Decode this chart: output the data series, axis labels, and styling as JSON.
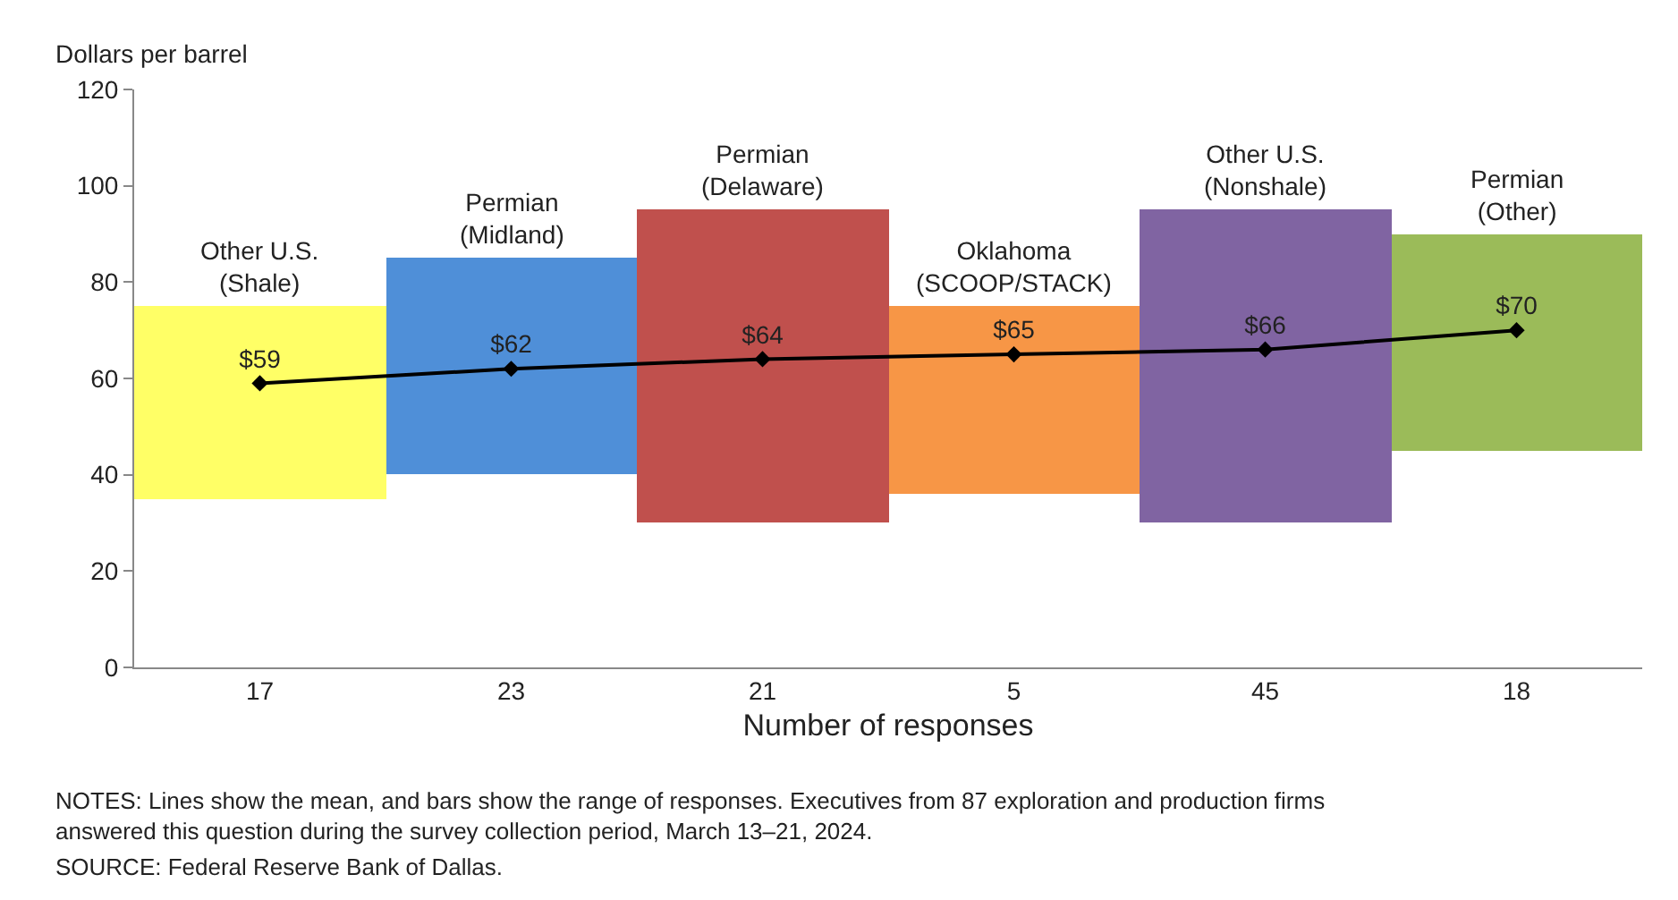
{
  "chart_data": {
    "type": "bar",
    "ylabel": "Dollars per barrel",
    "xlabel": "Number of responses",
    "categories": [
      "17",
      "23",
      "21",
      "5",
      "45",
      "18"
    ],
    "series": [
      {
        "colors": [
          "#ffff66",
          "#4f8fd8",
          "#c0504d",
          "#f79646",
          "#8064a2",
          "#9bbb59"
        ],
        "base": [
          35,
          40,
          30,
          36,
          30,
          45
        ],
        "values": [
          40,
          45,
          65,
          39,
          65,
          45
        ]
      },
      {
        "type": "line",
        "color": "#000000",
        "values": [
          59,
          62,
          64,
          65,
          66,
          70
        ],
        "value_labels": [
          "$59",
          "$62",
          "$64",
          "$65",
          "$66",
          "$70"
        ]
      }
    ],
    "marker": "diamond",
    "line_style": "solid",
    "ylim": [
      0,
      120
    ],
    "yticks": [
      0,
      20,
      40,
      60,
      80,
      100,
      120
    ],
    "grid": false,
    "annotations": [
      {
        "text": "Other U.S.\n(Shale)",
        "x": "17",
        "y": 75
      },
      {
        "text": "Permian\n(Midland)",
        "x": "23",
        "y": 85
      },
      {
        "text": "Permian\n(Delaware)",
        "x": "21",
        "y": 95
      },
      {
        "text": "Oklahoma\n(SCOOP/STACK)",
        "x": "5",
        "y": 75
      },
      {
        "text": "Other U.S.\n(Nonshale)",
        "x": "45",
        "y": 95
      },
      {
        "text": "Permian\n(Other)",
        "x": "18",
        "y": 90
      },
      "NOTES: Lines show the mean, and bars show the range of responses. Executives from 87 exploration and production firms answered this question during the survey collection period, March 13–21, 2024.",
      "SOURCE: Federal Reserve Bank of Dallas."
    ]
  }
}
